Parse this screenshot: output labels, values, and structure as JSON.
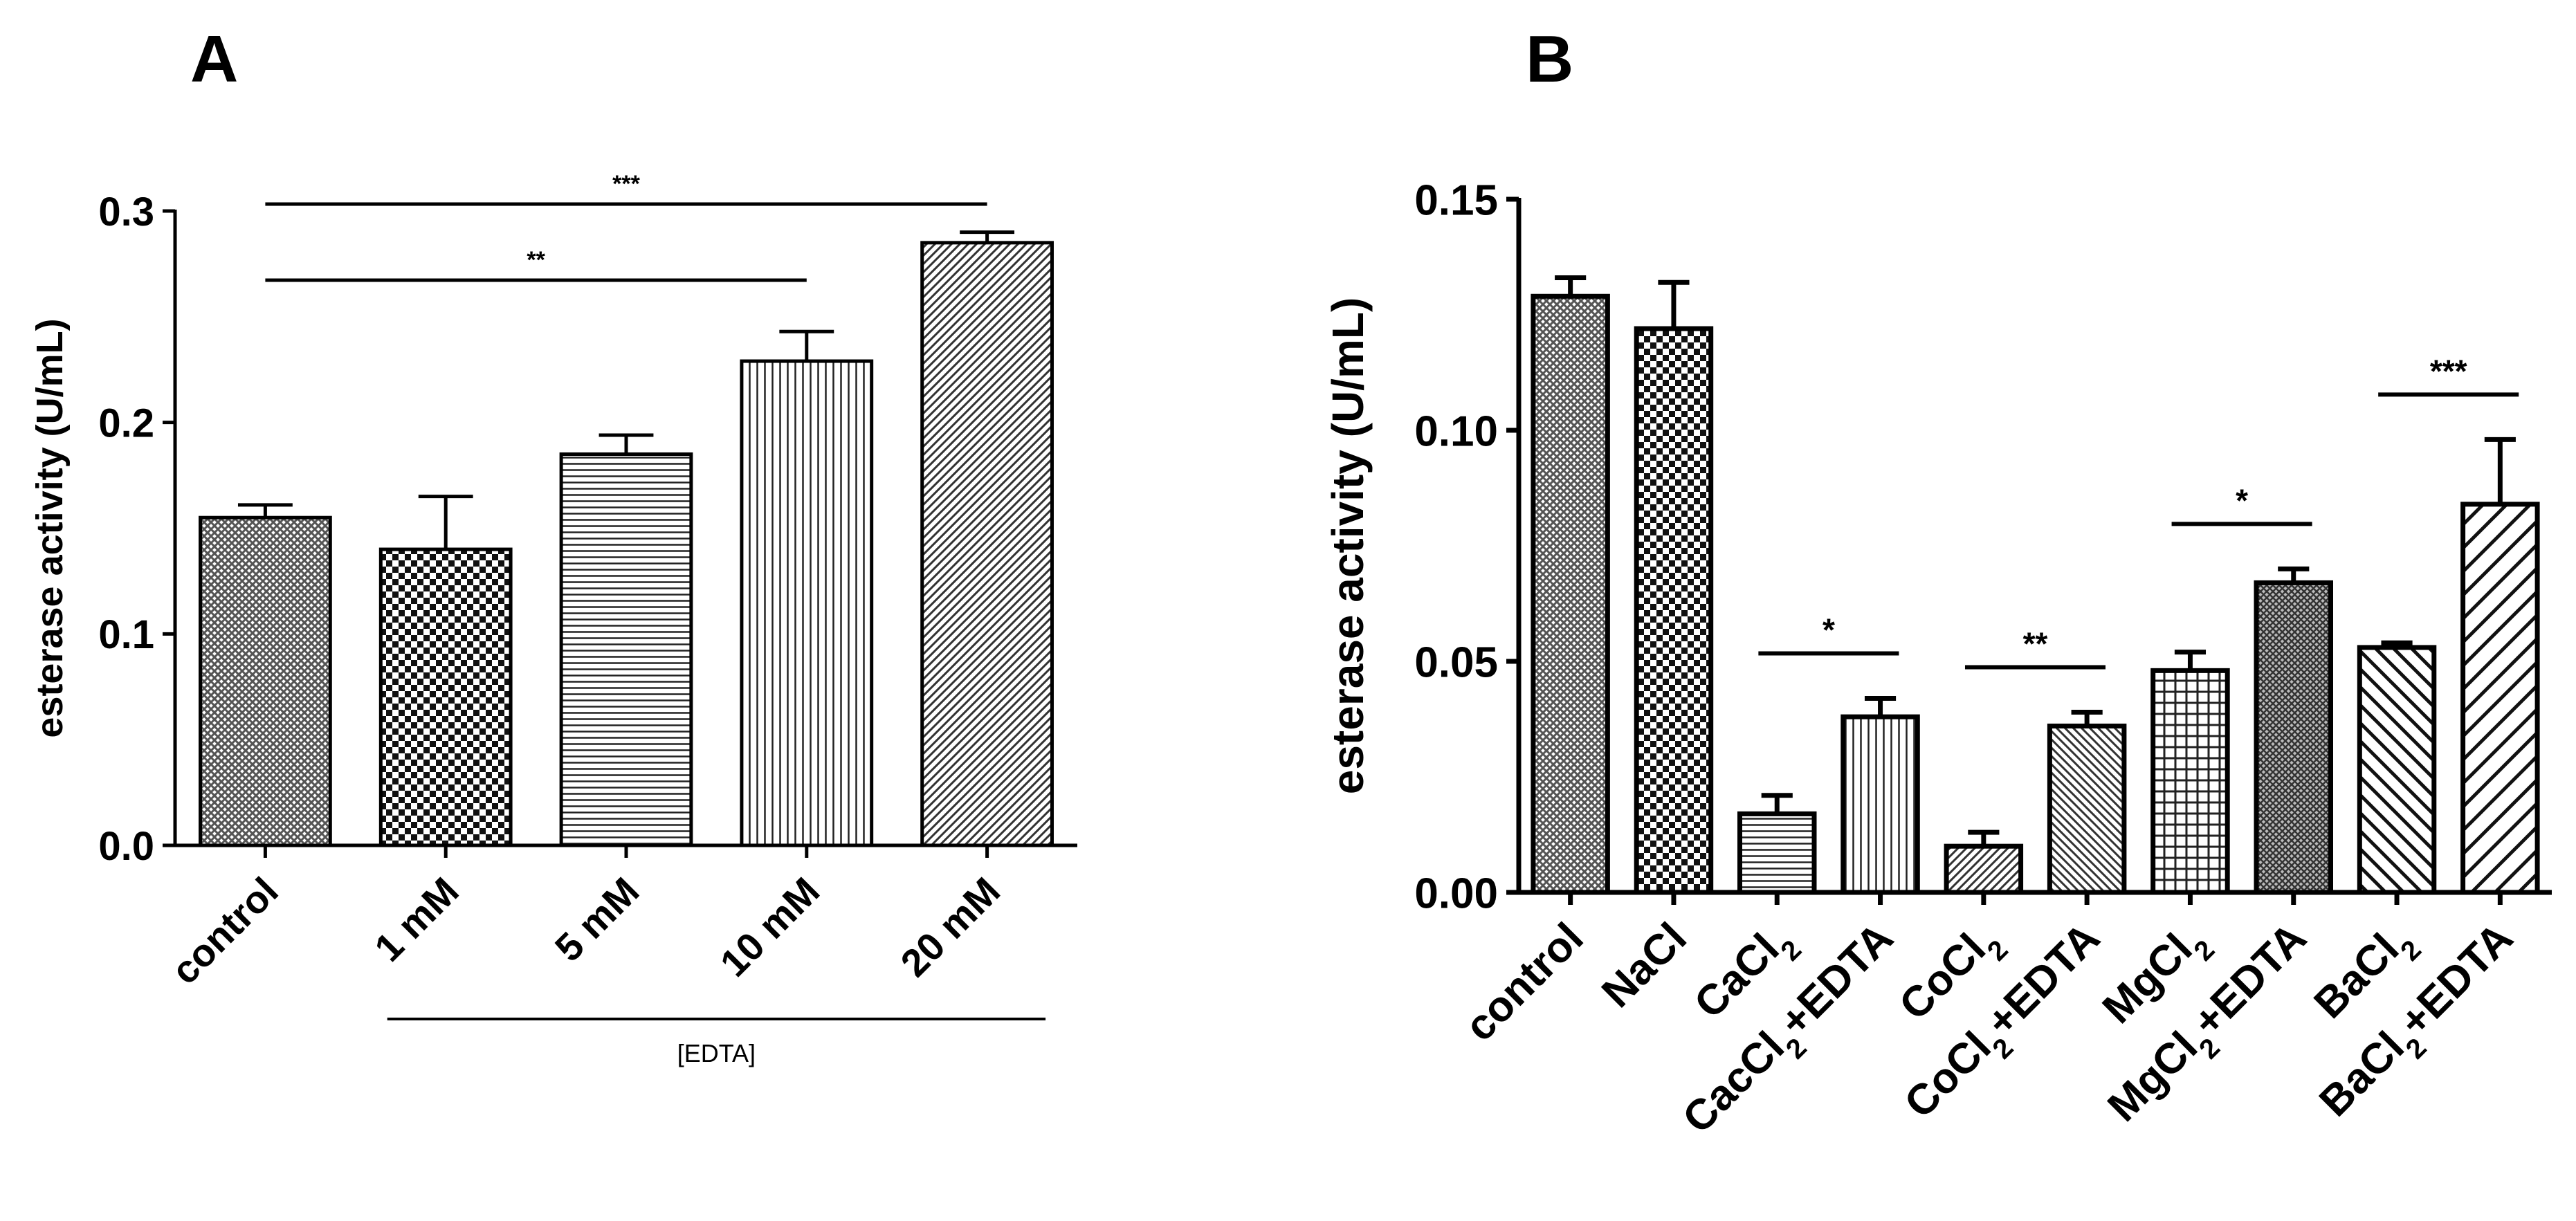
{
  "chart_data": [
    {
      "panel": "A",
      "type": "bar",
      "ylabel": "esterase activity (U/mL)",
      "ylim": [
        0,
        0.3
      ],
      "yticks": [
        "0.0",
        "0.1",
        "0.2",
        "0.3"
      ],
      "categories": [
        "control",
        "1 mM",
        "5 mM",
        "10 mM",
        "20 mM"
      ],
      "values": [
        0.155,
        0.14,
        0.185,
        0.229,
        0.285
      ],
      "errors": [
        0.006,
        0.025,
        0.009,
        0.014,
        0.005
      ],
      "patterns": [
        "fine-cross",
        "checker",
        "h-lines",
        "v-lines",
        "diag-fwd"
      ],
      "group_label": "[EDTA]",
      "group_span": [
        1,
        4
      ],
      "significance": [
        {
          "from": 0,
          "to": 3,
          "label": "**"
        },
        {
          "from": 0,
          "to": 4,
          "label": "***"
        }
      ]
    },
    {
      "panel": "B",
      "type": "bar",
      "ylabel": "esterase activity (U/mL)",
      "ylim": [
        0,
        0.15
      ],
      "yticks": [
        "0.00",
        "0.05",
        "0.10",
        "0.15"
      ],
      "categories": [
        {
          "base": "control",
          "sub": "",
          "tail": ""
        },
        {
          "base": "NaCl",
          "sub": "",
          "tail": ""
        },
        {
          "base": "CaCl",
          "sub": "2",
          "tail": ""
        },
        {
          "base": "CacCl",
          "sub": "2",
          "tail": "+EDTA"
        },
        {
          "base": "CoCl",
          "sub": "2",
          "tail": ""
        },
        {
          "base": "CoCl",
          "sub": "2",
          "tail": "+EDTA"
        },
        {
          "base": "MgCl",
          "sub": "2",
          "tail": ""
        },
        {
          "base": "MgCl",
          "sub": "2",
          "tail": "+EDTA"
        },
        {
          "base": "BaCl",
          "sub": "2",
          "tail": ""
        },
        {
          "base": "BaCl",
          "sub": "2",
          "tail": "+EDTA"
        }
      ],
      "values": [
        0.129,
        0.122,
        0.017,
        0.038,
        0.01,
        0.036,
        0.048,
        0.067,
        0.053,
        0.084
      ],
      "errors": [
        0.004,
        0.01,
        0.004,
        0.004,
        0.003,
        0.003,
        0.004,
        0.003,
        0.001,
        0.014
      ],
      "patterns": [
        "fine-cross",
        "checker",
        "h-lines",
        "v-lines",
        "diag-fwd",
        "diag-back",
        "grid",
        "dense-diag",
        "diag-back-wide",
        "diag-fwd-wide"
      ],
      "significance": [
        {
          "from": 2,
          "to": 3,
          "label": "*"
        },
        {
          "from": 4,
          "to": 5,
          "label": "**"
        },
        {
          "from": 6,
          "to": 7,
          "label": "*"
        },
        {
          "from": 8,
          "to": 9,
          "label": "***"
        }
      ]
    }
  ],
  "panel_labels": {
    "a": "A",
    "b": "B"
  }
}
